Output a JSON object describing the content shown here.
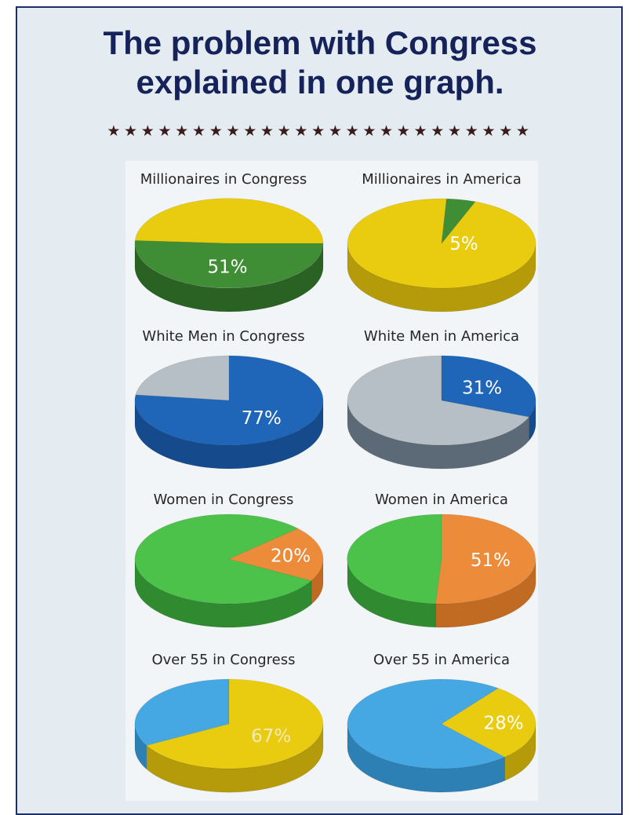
{
  "title": {
    "line1": "The problem with Congress",
    "line2": "explained in one graph."
  },
  "divider": "★★★★★★★★★★★★★★★★★★★★★★★★★",
  "chart_data": [
    {
      "type": "pie",
      "title": "Millionaires in Congress",
      "value": 51,
      "label": "51%",
      "colors": {
        "highlight": "#3f8d34",
        "highlight_side": "#2a6223",
        "rest": "#e9cc0f",
        "rest_side": "#b59a0a",
        "label": "#ffffff"
      }
    },
    {
      "type": "pie",
      "title": "Millionaires in America",
      "value": 5,
      "label": "5%",
      "colors": {
        "highlight": "#3f8d34",
        "highlight_side": "#2a6223",
        "rest": "#e9cc0f",
        "rest_side": "#b59a0a",
        "label": "#ffffff"
      }
    },
    {
      "type": "pie",
      "title": "White Men in Congress",
      "value": 77,
      "label": "77%",
      "colors": {
        "highlight": "#1f66b8",
        "highlight_side": "#154a8c",
        "rest": "#b6bfc5",
        "rest_side": "#8a9399",
        "label": "#ffffff"
      }
    },
    {
      "type": "pie",
      "title": "White Men in America",
      "value": 31,
      "label": "31%",
      "colors": {
        "highlight": "#1f66b8",
        "highlight_side": "#154a8c",
        "rest": "#b6bfc5",
        "rest_side": "#5c6a78",
        "label": "#ffffff"
      }
    },
    {
      "type": "pie",
      "title": "Women in Congress",
      "value": 20,
      "label": "20%",
      "colors": {
        "highlight": "#ec8c3a",
        "highlight_side": "#c06a22",
        "rest": "#4cc24a",
        "rest_side": "#2f8a30",
        "label": "#ffffff"
      }
    },
    {
      "type": "pie",
      "title": "Women in America",
      "value": 51,
      "label": "51%",
      "colors": {
        "highlight": "#ec8c3a",
        "highlight_side": "#c06a22",
        "rest": "#4cc24a",
        "rest_side": "#2f8a30",
        "label": "#ffffff"
      }
    },
    {
      "type": "pie",
      "title": "Over 55 in Congress",
      "value": 67,
      "label": "67%",
      "colors": {
        "highlight": "#e9cc0f",
        "highlight_side": "#b59a0a",
        "rest": "#46a8e2",
        "rest_side": "#2d80b4",
        "label": "#f2e9c0"
      }
    },
    {
      "type": "pie",
      "title": "Over 55 in America",
      "value": 28,
      "label": "28%",
      "colors": {
        "highlight": "#e9cc0f",
        "highlight_side": "#b59a0a",
        "rest": "#46a8e2",
        "rest_side": "#2d80b4",
        "label": "#ffffff"
      }
    }
  ]
}
